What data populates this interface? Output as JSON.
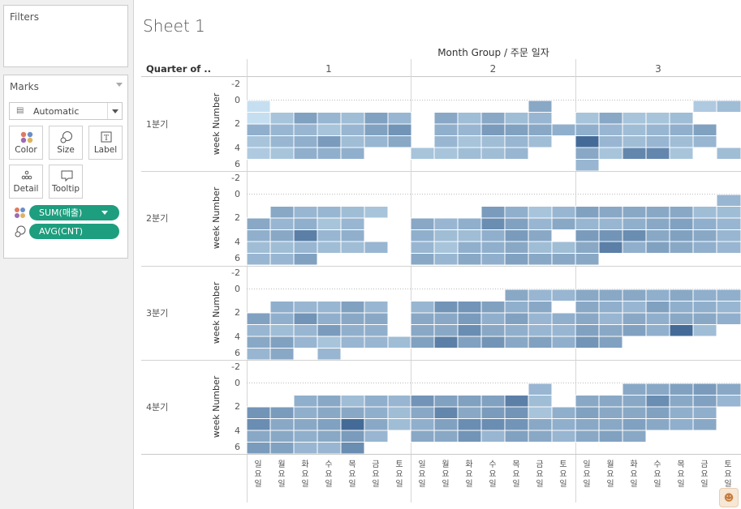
{
  "left_panel": {
    "filters_title": "Filters",
    "marks_title": "Marks",
    "mark_type": "Automatic",
    "mark_buttons": [
      {
        "name": "color",
        "label": "Color",
        "icon": "color-dots-icon"
      },
      {
        "name": "size",
        "label": "Size",
        "icon": "size-icon"
      },
      {
        "name": "label",
        "label": "Label",
        "icon": "label-text-icon"
      },
      {
        "name": "detail",
        "label": "Detail",
        "icon": "detail-dots-icon"
      },
      {
        "name": "tooltip",
        "label": "Tooltip",
        "icon": "tooltip-bubble-icon"
      }
    ],
    "pills": [
      {
        "label": "SUM(매출)",
        "icon": "color-dots-icon",
        "has_caret": true
      },
      {
        "label": "AVG(CNT)",
        "icon": "size-icon",
        "has_caret": false
      }
    ]
  },
  "sheet_title": "Sheet 1",
  "colors": {
    "pill": "#1d9e7e",
    "heat_light": "#c6dff0",
    "heat_dark": "#2d5688",
    "grid": "#dcdcdc"
  },
  "chart_data": {
    "type": "heatmap",
    "column_header": "Month Group / 주문 일자",
    "row_header": "Quarter of ..",
    "axis_title": "week Number",
    "month_groups": [
      "1",
      "2",
      "3"
    ],
    "weekday_labels": [
      "일",
      "월",
      "화",
      "수",
      "목",
      "금",
      "토"
    ],
    "quarters": [
      "1분기",
      "2분기",
      "3분기",
      "4분기"
    ],
    "y_ticks": [
      "-2",
      "0",
      "2",
      "4",
      "6"
    ],
    "y_range": [
      -2,
      6
    ],
    "rows_per_panel": [
      0,
      1,
      2,
      3,
      4,
      5
    ],
    "cells": [
      [
        [
          [
            0,
            null,
            null,
            null,
            null,
            null,
            null
          ],
          [
            0,
            0.2,
            0.45,
            0.3,
            0.25,
            0.45,
            0.3
          ],
          [
            0.35,
            0.3,
            0.3,
            0.2,
            0.3,
            0.45,
            0.55
          ],
          [
            0.2,
            0.3,
            0.35,
            0.5,
            0.25,
            0.3,
            0.4
          ],
          [
            0.15,
            0.2,
            0.35,
            0.35,
            0.35,
            null,
            null
          ],
          [
            null,
            null,
            null,
            null,
            null,
            null,
            null
          ]
        ],
        [
          [
            null,
            null,
            null,
            null,
            null,
            0.4,
            null
          ],
          [
            null,
            0.4,
            0.25,
            0.4,
            0.25,
            0.3,
            null
          ],
          [
            null,
            0.35,
            0.3,
            0.5,
            0.45,
            0.4,
            0.35
          ],
          [
            null,
            0.3,
            0.2,
            0.25,
            0.3,
            0.25,
            null
          ],
          [
            0.2,
            0.2,
            0.25,
            0.25,
            0.3,
            null,
            null
          ],
          [
            null,
            null,
            null,
            null,
            null,
            null,
            null
          ]
        ],
        [
          [
            null,
            null,
            null,
            null,
            null,
            0.15,
            0.25
          ],
          [
            0.2,
            0.4,
            0.2,
            0.2,
            0.25,
            null,
            null
          ],
          [
            0.35,
            0.3,
            0.25,
            0.3,
            0.35,
            0.45,
            null
          ],
          [
            0.85,
            0.3,
            0.25,
            0.3,
            0.25,
            0.3,
            null
          ],
          [
            0.4,
            0.2,
            0.65,
            0.65,
            0.2,
            null,
            0.25
          ],
          [
            0.3,
            null,
            null,
            null,
            null,
            null,
            null
          ]
        ]
      ],
      [
        [
          [
            null,
            null,
            null,
            null,
            null,
            null,
            null
          ],
          [
            null,
            0.4,
            0.3,
            0.3,
            0.25,
            0.2,
            null
          ],
          [
            0.4,
            0.3,
            0.35,
            0.2,
            0.3,
            null,
            null
          ],
          [
            0.35,
            0.4,
            0.7,
            0.3,
            0.35,
            null,
            null
          ],
          [
            0.25,
            0.25,
            0.3,
            0.25,
            0.25,
            0.3,
            null
          ],
          [
            0.3,
            0.3,
            0.45,
            null,
            null,
            null,
            null
          ]
        ],
        [
          [
            null,
            null,
            null,
            null,
            null,
            null,
            null
          ],
          [
            null,
            null,
            null,
            0.5,
            0.35,
            0.2,
            0.3
          ],
          [
            0.4,
            0.3,
            0.35,
            0.6,
            0.45,
            0.3,
            0.4
          ],
          [
            0.35,
            0.25,
            0.25,
            0.35,
            0.5,
            0.4,
            null
          ],
          [
            0.3,
            0.2,
            0.35,
            0.35,
            0.4,
            0.25,
            0.25
          ],
          [
            0.4,
            0.3,
            0.4,
            0.35,
            0.45,
            0.4,
            0.4
          ]
        ],
        [
          [
            null,
            null,
            null,
            null,
            null,
            null,
            0.3
          ],
          [
            0.45,
            0.4,
            0.4,
            0.4,
            0.4,
            0.25,
            0.25
          ],
          [
            0.3,
            0.3,
            0.35,
            0.4,
            0.45,
            0.35,
            0.3
          ],
          [
            0.5,
            0.55,
            0.6,
            0.4,
            0.45,
            0.4,
            0.3
          ],
          [
            0.4,
            0.7,
            0.35,
            0.45,
            0.4,
            0.35,
            0.3
          ],
          [
            0.4,
            null,
            null,
            null,
            null,
            null,
            null
          ]
        ]
      ],
      [
        [
          [
            null,
            null,
            null,
            null,
            null,
            null,
            null
          ],
          [
            null,
            0.35,
            0.3,
            0.3,
            0.45,
            0.3,
            null
          ],
          [
            0.45,
            0.35,
            0.55,
            0.35,
            0.4,
            0.4,
            null
          ],
          [
            0.3,
            0.25,
            0.3,
            0.5,
            0.35,
            0.35,
            null
          ],
          [
            0.4,
            0.45,
            0.3,
            0.2,
            0.3,
            0.3,
            0.25
          ],
          [
            0.3,
            0.4,
            null,
            0.3,
            null,
            null,
            null
          ]
        ],
        [
          [
            null,
            null,
            null,
            null,
            0.4,
            0.3,
            0.3
          ],
          [
            0.3,
            0.55,
            0.55,
            0.45,
            0.35,
            0.4,
            null
          ],
          [
            0.4,
            0.4,
            0.5,
            0.35,
            0.45,
            0.3,
            0.35
          ],
          [
            0.4,
            0.4,
            0.6,
            0.4,
            0.35,
            0.3,
            0.3
          ],
          [
            0.45,
            0.7,
            0.45,
            0.55,
            0.4,
            0.45,
            0.35
          ],
          [
            null,
            null,
            null,
            null,
            null,
            null,
            null
          ]
        ],
        [
          [
            0.4,
            0.4,
            0.4,
            0.35,
            0.4,
            0.35,
            0.35
          ],
          [
            0.4,
            0.35,
            0.3,
            0.45,
            0.35,
            0.35,
            0.3
          ],
          [
            0.4,
            0.3,
            0.4,
            0.35,
            0.4,
            0.4,
            0.35
          ],
          [
            0.45,
            0.4,
            0.45,
            0.35,
            0.85,
            0.25,
            null
          ],
          [
            0.55,
            0.45,
            null,
            null,
            null,
            null,
            null
          ],
          [
            null,
            null,
            null,
            null,
            null,
            null,
            null
          ]
        ]
      ],
      [
        [
          [
            null,
            null,
            null,
            null,
            null,
            null,
            null
          ],
          [
            null,
            null,
            0.35,
            0.4,
            0.25,
            0.35,
            0.3
          ],
          [
            0.55,
            0.5,
            0.35,
            0.4,
            0.4,
            0.35,
            0.25
          ],
          [
            0.6,
            0.4,
            0.4,
            0.45,
            0.85,
            0.4,
            0.25
          ],
          [
            0.4,
            0.4,
            0.35,
            0.4,
            0.5,
            0.3,
            null
          ],
          [
            0.5,
            0.45,
            0.3,
            0.3,
            0.6,
            null,
            null
          ]
        ],
        [
          [
            null,
            null,
            null,
            null,
            null,
            0.3,
            null
          ],
          [
            0.55,
            0.45,
            0.45,
            0.45,
            0.7,
            0.25,
            null
          ],
          [
            0.4,
            0.65,
            0.4,
            0.5,
            0.55,
            0.2,
            0.35
          ],
          [
            0.35,
            0.45,
            0.6,
            0.6,
            0.55,
            0.4,
            0.35
          ],
          [
            0.4,
            0.4,
            0.55,
            0.3,
            0.45,
            0.4,
            0.3
          ],
          [
            null,
            null,
            null,
            null,
            null,
            null,
            null
          ]
        ],
        [
          [
            null,
            null,
            0.4,
            0.4,
            0.45,
            0.5,
            0.4
          ],
          [
            0.4,
            0.4,
            0.4,
            0.6,
            0.4,
            0.45,
            0.3
          ],
          [
            0.45,
            0.4,
            0.4,
            0.45,
            0.35,
            0.35,
            null
          ],
          [
            0.4,
            0.4,
            0.45,
            0.4,
            0.35,
            0.4,
            null
          ],
          [
            0.4,
            0.45,
            0.4,
            null,
            null,
            null,
            null
          ],
          [
            null,
            null,
            null,
            null,
            null,
            null,
            null
          ]
        ]
      ]
    ]
  }
}
